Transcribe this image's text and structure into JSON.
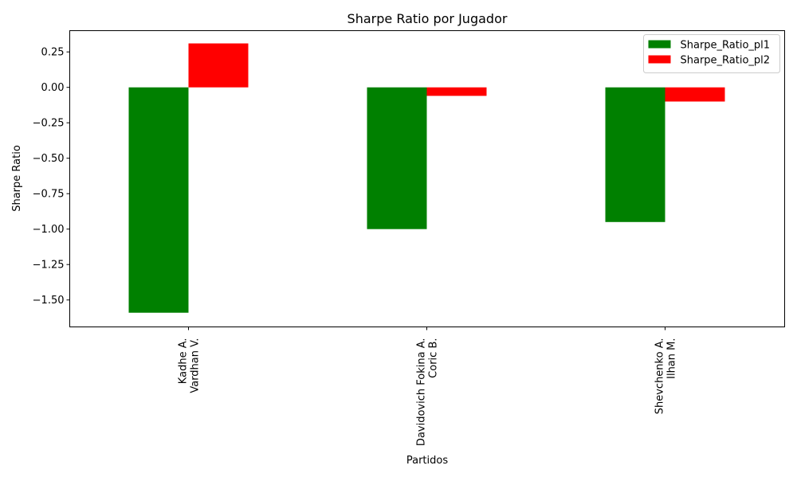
{
  "chart_data": {
    "type": "bar",
    "title": "Sharpe Ratio por Jugador",
    "xlabel": "Partidos",
    "ylabel": "Sharpe Ratio",
    "categories": [
      [
        "Kadhe A.",
        "Vardhan V."
      ],
      [
        "Davidovich Fokina A.",
        "Coric B."
      ],
      [
        "Shevchenko A.",
        "Ilhan M."
      ]
    ],
    "series": [
      {
        "name": "Sharpe_Ratio_pl1",
        "color": "#008000",
        "values": [
          -1.59,
          -1.0,
          -0.95
        ]
      },
      {
        "name": "Sharpe_Ratio_pl2",
        "color": "#ff0000",
        "values": [
          0.31,
          -0.06,
          -0.1
        ]
      }
    ],
    "ylim": [
      -1.69,
      0.4
    ],
    "yticks": [
      "0.25",
      "0.00",
      "−0.25",
      "−0.50",
      "−0.75",
      "−1.00",
      "−1.25",
      "−1.50"
    ],
    "ytick_values": [
      0.25,
      0,
      -0.25,
      -0.5,
      -0.75,
      -1.0,
      -1.25,
      -1.5
    ],
    "grid": false,
    "legend": "top-right"
  }
}
